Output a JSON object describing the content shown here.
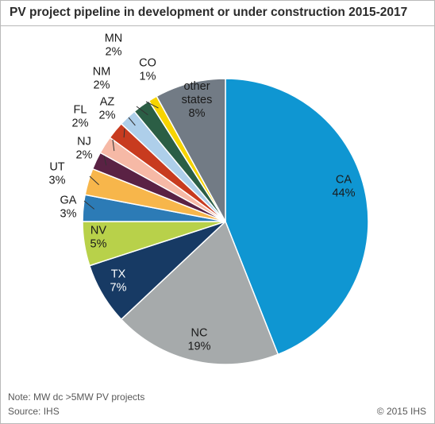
{
  "title": "PV project pipeline in development or under construction 2015-2017",
  "note": "Note: MW dc >5MW PV projects",
  "source": "Source: IHS",
  "copyright": "© 2015 IHS",
  "chart_data": {
    "type": "pie",
    "title": "PV project pipeline in development or under construction 2015-2017",
    "unit": "%",
    "slices": [
      {
        "label": "CA",
        "value": 44,
        "display": "44%",
        "color": "#0f96d2"
      },
      {
        "label": "NC",
        "value": 19,
        "display": "19%",
        "color": "#a6aaab"
      },
      {
        "label": "TX",
        "value": 7,
        "display": "7%",
        "color": "#173a64"
      },
      {
        "label": "NV",
        "value": 5,
        "display": "5%",
        "color": "#b8d14a"
      },
      {
        "label": "GA",
        "value": 3,
        "display": "3%",
        "color": "#2c7bb6"
      },
      {
        "label": "UT",
        "value": 3,
        "display": "3%",
        "color": "#f7b64b"
      },
      {
        "label": "NJ",
        "value": 2,
        "display": "2%",
        "color": "#5a2244"
      },
      {
        "label": "FL",
        "value": 2,
        "display": "2%",
        "color": "#f6b9a6"
      },
      {
        "label": "AZ",
        "value": 2,
        "display": "2%",
        "color": "#c83b1f"
      },
      {
        "label": "NM",
        "value": 2,
        "display": "2%",
        "color": "#aecfea"
      },
      {
        "label": "MN",
        "value": 2,
        "display": "2%",
        "color": "#2b5e45"
      },
      {
        "label": "CO",
        "value": 1,
        "display": "1%",
        "color": "#f7d400"
      },
      {
        "label": "other states",
        "value": 8,
        "display": "8%",
        "color": "#727b85"
      }
    ]
  }
}
